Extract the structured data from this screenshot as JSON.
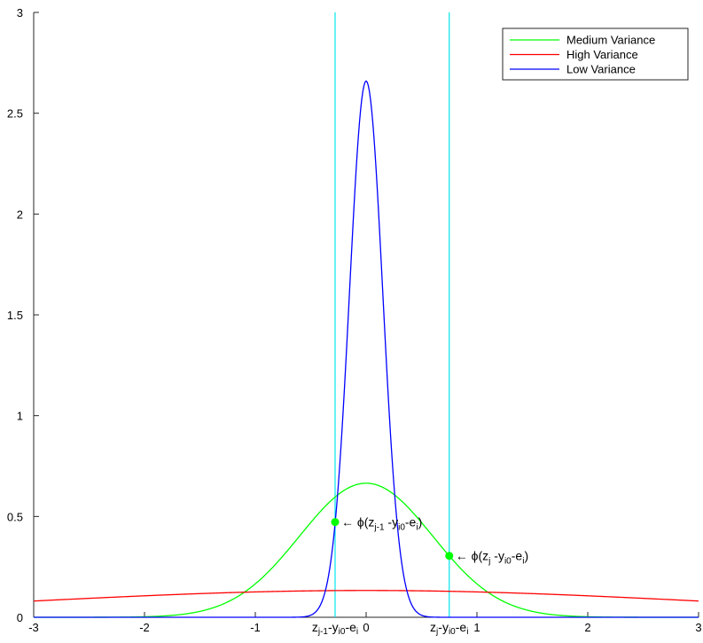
{
  "chart_data": {
    "type": "line",
    "xlim": [
      -3,
      3
    ],
    "ylim": [
      0,
      3
    ],
    "x_ticks": [
      -3,
      -2,
      -1,
      0,
      1,
      2,
      3
    ],
    "y_ticks": [
      0,
      0.5,
      1,
      1.5,
      2,
      2.5,
      3
    ],
    "grid": false,
    "legend_placement": "top-right",
    "series": [
      {
        "name": "Medium Variance",
        "color": "#00ff00",
        "mu": 0,
        "sigma": 0.6,
        "x": [
          -2.4,
          -1.8,
          -1.2,
          -0.9,
          -0.6,
          -0.3,
          0,
          0.3,
          0.6,
          0.9,
          1.2,
          1.8,
          2.4
        ],
        "y": [
          0.0002,
          0.0074,
          0.09,
          0.216,
          0.403,
          0.587,
          0.665,
          0.587,
          0.403,
          0.216,
          0.09,
          0.0074,
          0.0002
        ]
      },
      {
        "name": "High Variance",
        "color": "#ff0000",
        "mu": 0,
        "sigma": 3,
        "x": [
          -3,
          -2,
          -1,
          0,
          1,
          2,
          3
        ],
        "y": [
          0.0807,
          0.106,
          0.126,
          0.133,
          0.126,
          0.106,
          0.0807
        ]
      },
      {
        "name": "Low Variance",
        "color": "#0000ff",
        "mu": 0,
        "sigma": 0.15,
        "x": [
          -0.6,
          -0.45,
          -0.3,
          -0.15,
          0,
          0.15,
          0.3,
          0.45,
          0.6
        ],
        "y": [
          0.0009,
          0.0295,
          0.36,
          1.613,
          2.66,
          1.613,
          0.36,
          0.0295,
          0.0009
        ]
      }
    ],
    "vlines": [
      {
        "x": -0.28,
        "color": "#00e5ee",
        "label_main": "z",
        "label_sub": "j-1",
        "label_rest1": "-y",
        "label_sub2": "i0",
        "label_rest2": "-e",
        "label_sub3": "i"
      },
      {
        "x": 0.75,
        "color": "#00e5ee",
        "label_main": "z",
        "label_sub": "j",
        "label_rest1": "-y",
        "label_sub2": "i0",
        "label_rest2": "-e",
        "label_sub3": "i"
      }
    ],
    "points": [
      {
        "x": -0.28,
        "y": 0.4725,
        "color": "#00ff00",
        "label": {
          "arrow": "← ",
          "phi": "ϕ",
          "open": "(z",
          "s1": "j-1",
          "mid1": " -y",
          "s2": "i0",
          "mid2": "-e",
          "s3": "i",
          "close": ")"
        }
      },
      {
        "x": 0.75,
        "y": 0.3048,
        "color": "#00ff00",
        "label": {
          "arrow": "← ",
          "phi": "ϕ",
          "open": "(z",
          "s1": "j",
          "mid1": " -y",
          "s2": "i0",
          "mid2": "-e",
          "s3": "i",
          "close": ")"
        }
      }
    ]
  }
}
